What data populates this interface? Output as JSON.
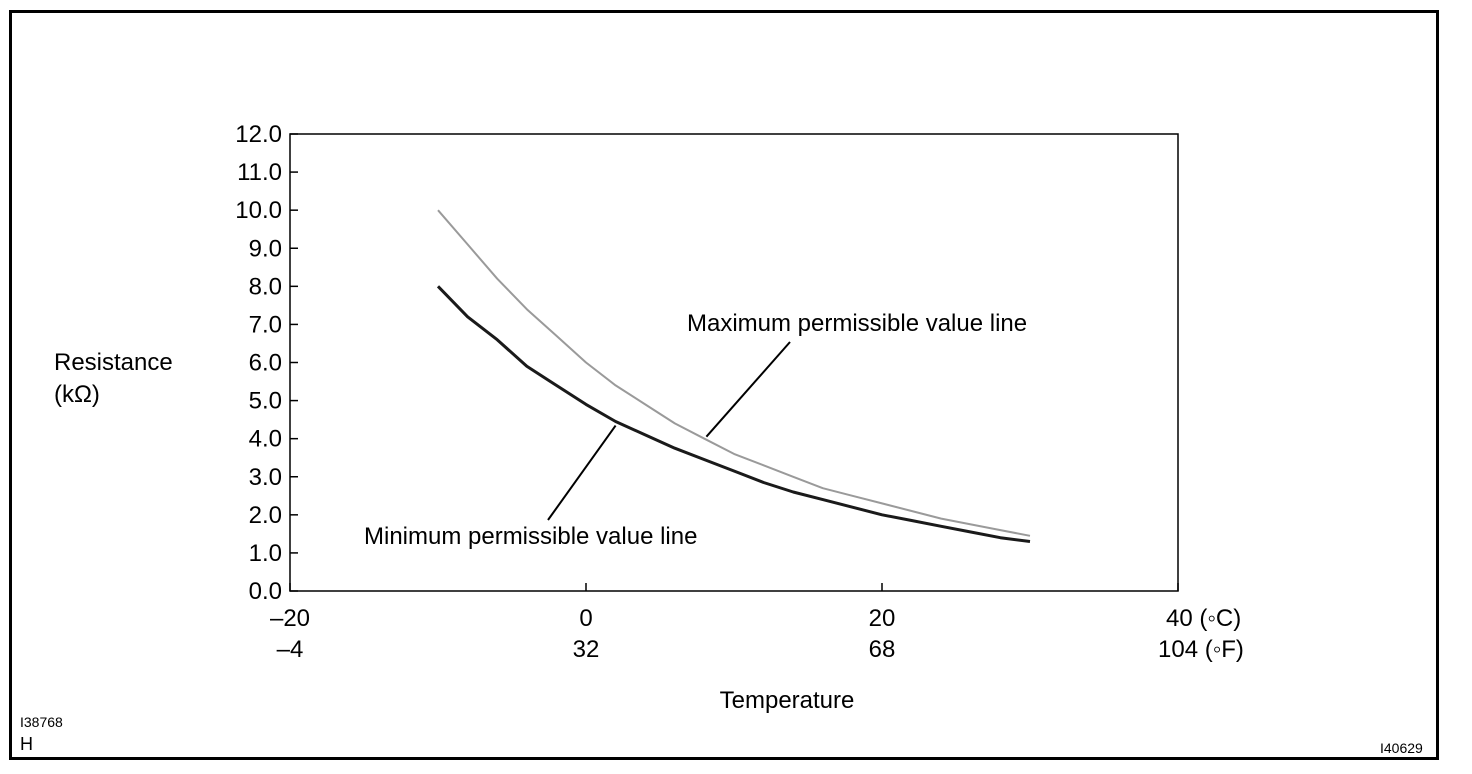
{
  "chart_data": {
    "type": "line",
    "title": "",
    "xlabel": "Temperature",
    "ylabel_line1": "Resistance",
    "ylabel_line2": "(kΩ)",
    "xlim": [
      -20,
      40
    ],
    "ylim": [
      0,
      12
    ],
    "yticks": [
      "12.0",
      "11.0",
      "10.0",
      "9.0",
      "8.0",
      "7.0",
      "6.0",
      "5.0",
      "4.0",
      "3.0",
      "2.0",
      "1.0",
      "0.0"
    ],
    "xticks_c": [
      {
        "value": -20,
        "label": "–20"
      },
      {
        "value": 0,
        "label": "0"
      },
      {
        "value": 20,
        "label": "20"
      },
      {
        "value": 40,
        "label": "40 (◦C)"
      }
    ],
    "xticks_f": [
      "–4",
      "32",
      "68",
      "104 (◦F)"
    ],
    "series": [
      {
        "name": "Maximum permissible value line",
        "color": "#9a9a9a",
        "x": [
          -10,
          -8,
          -6,
          -4,
          -2,
          0,
          2,
          4,
          6,
          8,
          10,
          12,
          14,
          16,
          18,
          20,
          22,
          24,
          26,
          28,
          30
        ],
        "y": [
          10.0,
          9.1,
          8.2,
          7.4,
          6.7,
          6.0,
          5.4,
          4.9,
          4.4,
          4.0,
          3.6,
          3.3,
          3.0,
          2.7,
          2.5,
          2.3,
          2.1,
          1.9,
          1.75,
          1.6,
          1.45
        ]
      },
      {
        "name": "Minimum permissible value line",
        "color": "#1a1a1a",
        "x": [
          -10,
          -8,
          -6,
          -4,
          -2,
          0,
          2,
          4,
          6,
          8,
          10,
          12,
          14,
          16,
          18,
          20,
          22,
          24,
          26,
          28,
          30
        ],
        "y": [
          8.0,
          7.2,
          6.6,
          5.9,
          5.4,
          4.9,
          4.45,
          4.1,
          3.75,
          3.45,
          3.15,
          2.85,
          2.6,
          2.4,
          2.2,
          2.0,
          1.85,
          1.7,
          1.55,
          1.4,
          1.3
        ]
      }
    ],
    "annotations": [
      {
        "text": "Maximum permissible value line",
        "series": 0,
        "point_x": 8.0
      },
      {
        "text": "Minimum permissible value line",
        "series": 1,
        "point_x": 2.0
      }
    ]
  },
  "figure_codes": {
    "left_code": "I38768",
    "left_mark": "H",
    "right_code": "I40629"
  }
}
